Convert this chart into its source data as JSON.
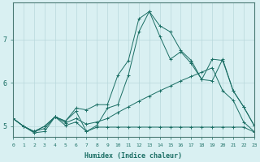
{
  "xlabel": "Humidex (Indice chaleur)",
  "background_color": "#d9f0f2",
  "grid_color": "#b8d8dc",
  "line_color": "#1a6e64",
  "spine_color": "#4a7a74",
  "x_ticks": [
    0,
    1,
    2,
    3,
    4,
    5,
    6,
    7,
    8,
    9,
    10,
    11,
    12,
    13,
    14,
    15,
    16,
    17,
    18,
    19,
    20,
    21,
    22,
    23
  ],
  "y_ticks": [
    5,
    6,
    7
  ],
  "xlim": [
    0,
    23
  ],
  "ylim": [
    4.75,
    7.85
  ],
  "lines": [
    {
      "x": [
        0,
        1,
        2,
        3,
        4,
        5,
        6,
        7,
        8,
        9,
        10,
        11,
        12,
        13,
        14,
        15,
        16,
        17,
        18,
        19,
        20,
        21,
        22,
        23
      ],
      "y": [
        5.18,
        5.0,
        4.85,
        4.88,
        5.22,
        5.02,
        5.1,
        4.88,
        4.98,
        4.98,
        4.98,
        4.98,
        4.98,
        4.98,
        4.98,
        4.98,
        4.98,
        4.98,
        4.98,
        4.98,
        4.98,
        4.98,
        4.98,
        4.87
      ]
    },
    {
      "x": [
        0,
        1,
        2,
        3,
        4,
        5,
        6,
        7,
        8,
        9,
        10,
        11,
        12,
        13,
        14,
        15,
        16,
        17,
        18,
        19,
        20,
        21,
        22,
        23
      ],
      "y": [
        5.18,
        5.0,
        4.88,
        4.95,
        5.22,
        5.08,
        5.18,
        5.05,
        5.1,
        5.18,
        5.32,
        5.45,
        5.58,
        5.7,
        5.82,
        5.93,
        6.05,
        6.15,
        6.25,
        6.35,
        5.82,
        5.6,
        5.1,
        4.88
      ]
    },
    {
      "x": [
        0,
        1,
        2,
        3,
        4,
        5,
        6,
        7,
        8,
        9,
        10,
        11,
        12,
        13,
        14,
        15,
        16,
        17,
        18,
        19,
        20,
        21,
        22,
        23
      ],
      "y": [
        5.18,
        5.0,
        4.88,
        5.0,
        5.22,
        5.12,
        5.42,
        5.38,
        5.5,
        5.5,
        6.18,
        6.52,
        7.48,
        7.65,
        7.32,
        7.18,
        6.75,
        6.52,
        6.08,
        6.55,
        6.52,
        5.82,
        5.45,
        5.02
      ]
    },
    {
      "x": [
        0,
        1,
        2,
        3,
        4,
        5,
        6,
        7,
        8,
        9,
        10,
        11,
        12,
        13,
        14,
        15,
        16,
        17,
        18,
        19,
        20,
        21,
        22,
        23
      ],
      "y": [
        5.18,
        5.0,
        4.88,
        5.0,
        5.22,
        5.12,
        5.35,
        4.88,
        5.02,
        5.42,
        5.5,
        6.18,
        7.18,
        7.65,
        7.08,
        6.55,
        6.72,
        6.45,
        6.08,
        6.05,
        6.55,
        5.82,
        5.45,
        5.02
      ]
    }
  ]
}
